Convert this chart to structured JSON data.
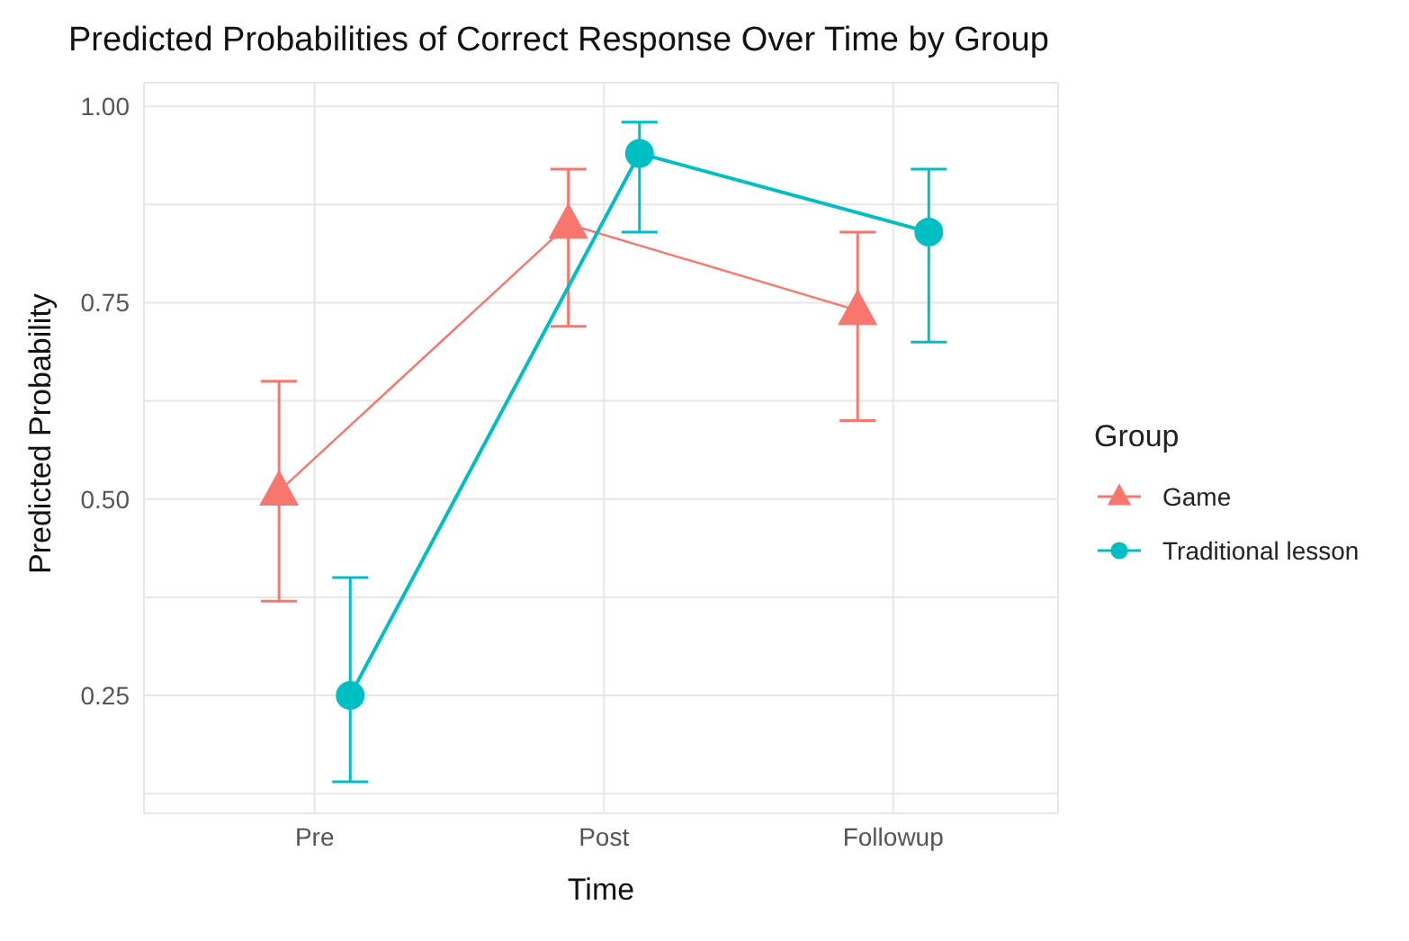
{
  "chart_data": {
    "type": "line",
    "title": "Predicted Probabilities of Correct Response Over Time by Group",
    "xlabel": "Time",
    "ylabel": "Predicted Probability",
    "legend_title": "Group",
    "categories": [
      "Pre",
      "Post",
      "Followup"
    ],
    "series": [
      {
        "name": "Game",
        "color": "#f8766d",
        "marker": "triangle",
        "values": [
          0.51,
          0.85,
          0.74
        ],
        "errors": [
          [
            0.37,
            0.65
          ],
          [
            0.72,
            0.92
          ],
          [
            0.6,
            0.84
          ]
        ]
      },
      {
        "name": "Traditional lesson",
        "color": "#00bfc4",
        "marker": "circle",
        "values": [
          0.25,
          0.94,
          0.84
        ],
        "errors": [
          [
            0.14,
            0.4
          ],
          [
            0.84,
            0.98
          ],
          [
            0.7,
            0.92
          ]
        ]
      }
    ],
    "ylim": [
      0.1,
      1.03
    ],
    "yticks": [
      {
        "value": 0.125,
        "label": null
      },
      {
        "value": 0.25,
        "label": "0.25"
      },
      {
        "value": 0.375,
        "label": null
      },
      {
        "value": 0.5,
        "label": "0.50"
      },
      {
        "value": 0.625,
        "label": null
      },
      {
        "value": 0.75,
        "label": "0.75"
      },
      {
        "value": 0.875,
        "label": null
      },
      {
        "value": 1,
        "label": "1.00"
      }
    ],
    "grid": true,
    "legend": "right"
  }
}
